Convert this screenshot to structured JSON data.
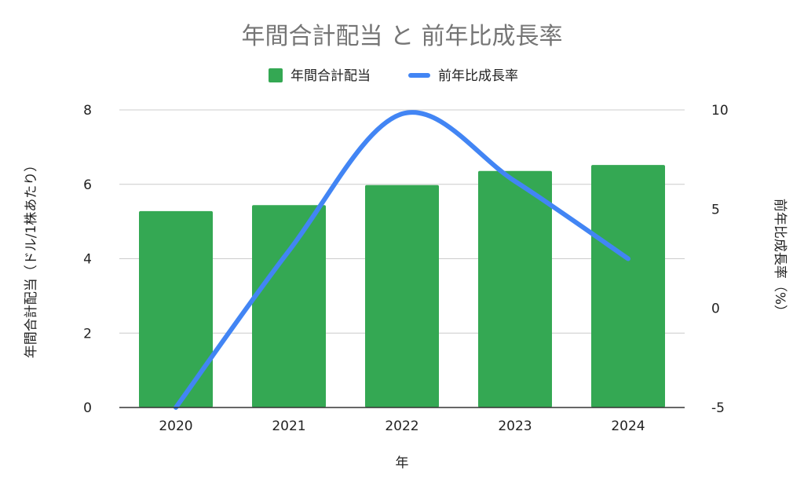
{
  "chart_data": {
    "type": "bar",
    "title": "年間合計配当 と 前年比成長率",
    "xlabel": "年",
    "ylabel": "年間合計配当（ドル/1株あたり）",
    "y2label": "前年比成長率（%）",
    "categories": [
      "2020",
      "2021",
      "2022",
      "2023",
      "2024"
    ],
    "ylim": [
      0,
      8
    ],
    "yticks": [
      0,
      2,
      4,
      6,
      8
    ],
    "y2lim": [
      -5,
      10
    ],
    "y2ticks": [
      -5,
      0,
      5,
      10
    ],
    "grid": true,
    "legend": "top",
    "series": [
      {
        "name": "年間合計配当",
        "type": "bar",
        "axis": "left",
        "color": "#34a853",
        "values": [
          5.28,
          5.44,
          5.98,
          6.36,
          6.52
        ]
      },
      {
        "name": "前年比成長率",
        "type": "line",
        "axis": "right",
        "color": "#4285f4",
        "values": [
          -5.0,
          2.9,
          9.8,
          6.4,
          2.5
        ]
      }
    ]
  }
}
